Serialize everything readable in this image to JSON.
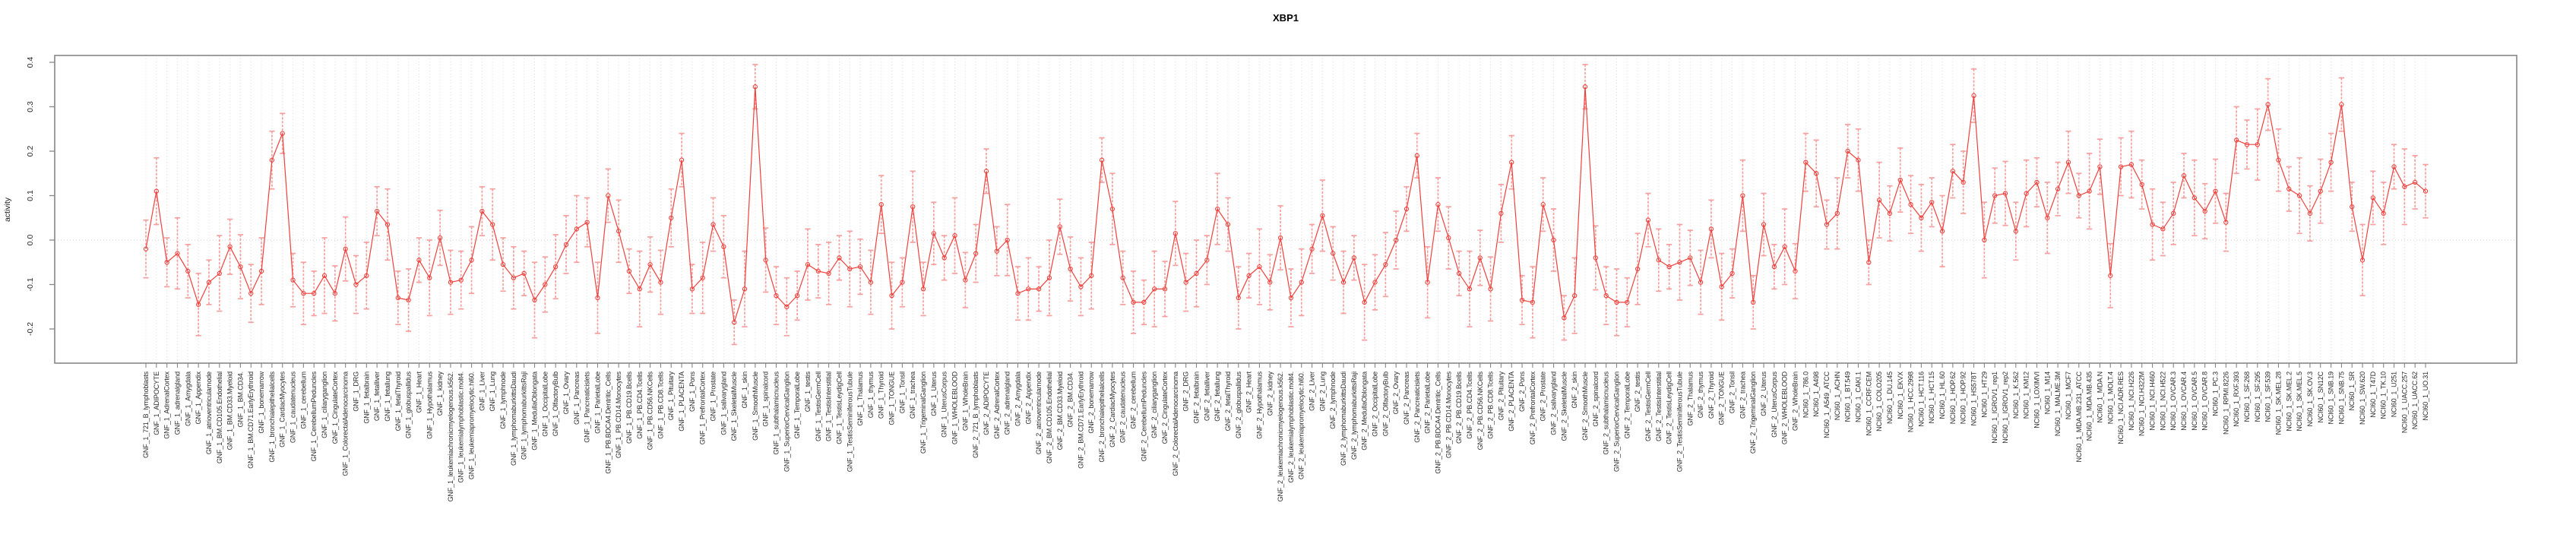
{
  "page": {
    "background": "#ffffff"
  },
  "chart_data": {
    "type": "line",
    "title": "XBP1",
    "xlabel": "",
    "ylabel": "activity",
    "legend": "none",
    "grid": "vertical dotted line per category; horizontal dotted line at y=0",
    "x_tick_label_rotation": 90,
    "point_style": "open-circle with error bars",
    "ylim": [
      -0.28,
      0.42
    ],
    "ytick_values": [
      -0.2,
      -0.1,
      0.0,
      0.1,
      0.2,
      0.3,
      0.4
    ],
    "ytick_labels": [
      "-0.2",
      "-0.1",
      "0.0",
      "0.1",
      "0.2",
      "0.3",
      "0.4"
    ],
    "n_points": 218,
    "colors": {
      "series": "#ee413d",
      "error_bar": "#f59f9e",
      "grid": "#dcdcdc",
      "zero_line": "#c9c9c9",
      "box": "#878787",
      "tick_text": "#2b2b2b"
    },
    "categories": [
      "GNF_1_721_B_lymphoblasts",
      "GNF_1_ADIPOCYTE",
      "GNF_1_AdrenalCortex",
      "GNF_1_adrenalgland",
      "GNF_1_Amygdala",
      "GNF_1_Appendix",
      "GNF_1_atrioventricularnode",
      "GNF_1_BM.CD105.Endothelial",
      "GNF_1_BM.CD33.Myeloid",
      "GNF_1_BM.CD34.",
      "GNF_1_BM.CD71.EarlyErythroid",
      "GNF_1_bonemarrow",
      "GNF_1_bronchialepithelialcells",
      "GNF_1_CardiacMyocytes",
      "GNF_1_caudatenucleus",
      "GNF_1_cerebellum",
      "GNF_1_CerebellumPeduncles",
      "GNF_1_ciliaryganglion",
      "GNF_1_CingulateCortex",
      "GNF_1_ColorectalAdenocarcinoma",
      "GNF_1_DRG",
      "GNF_1_fetalbrain",
      "GNF_1_fetalliver",
      "GNF_1_fetallung",
      "GNF_1_fetalThyroid",
      "GNF_1_globuspallidus",
      "GNF_1_Heart",
      "GNF_1_Hypothalamus",
      "GNF_1_kidney",
      "GNF_1_leukemiachronicmyelogenous.k562.",
      "GNF_1_leukemialymphoblastic.molt4.",
      "GNF_1_leukemiapromyelocytic.hl60.",
      "GNF_1_Liver",
      "GNF_1_Lung",
      "GNF_1_lymphnode",
      "GNF_1_lymphomaburkittsDaudi",
      "GNF_1_lymphomaburkittsRaji",
      "GNF_1_MedullaOblongata",
      "GNF_1_OccipitalLobe",
      "GNF_1_OlfactoryBulb",
      "GNF_1_Ovary",
      "GNF_1_Pancreas",
      "GNF_1_Pancreaticislets",
      "GNF_1_ParietalLobe",
      "GNF_1_PB.BDCA4.Dentritic_Cells",
      "GNF_1_PB.CD14.Monocytes",
      "GNF_1_PB.CD19.Bcells",
      "GNF_1_PB.CD4.Tcells",
      "GNF_1_PB.CD56.NKCells",
      "GNF_1_PB.CD8.Tcells",
      "GNF_1_Pituitary",
      "GNF_1_PLACENTA",
      "GNF_1_Pons",
      "GNF_1_PrefrontalCortex",
      "GNF_1_Prostate",
      "GNF_1_salivarygland",
      "GNF_1_SkeletalMuscle",
      "GNF_1_skin",
      "GNF_1_SmoothMuscle",
      "GNF_1_spinalcord",
      "GNF_1_subthalamicnucleus",
      "GNF_1_SuperiorCervicalGanglion",
      "GNF_1_TemporalLobe",
      "GNF_1_testis",
      "GNF_1_TestisGermCell",
      "GNF_1_TestisInterstitial",
      "GNF_1_TestisLeydigCell",
      "GNF_1_TestisSeminiferousTubule",
      "GNF_1_Thalamus",
      "GNF_1_thymus",
      "GNF_1_Thyroid",
      "GNF_1_TONGUE",
      "GNF_1_Tonsil",
      "GNF_1_trachea",
      "GNF_1_TrigeminalGanglion",
      "GNF_1_Uterus",
      "GNF_1_UterusCorpus",
      "GNF_1_WHOLEBLOOD",
      "GNF_1_WholeBrain",
      "GNF_2_721_B_lymphoblasts",
      "GNF_2_ADIPOCYTE",
      "GNF_2_AdrenalCortex",
      "GNF_2_adrenalgland",
      "GNF_2_Amygdala",
      "GNF_2_Appendix",
      "GNF_2_atrioventricularnode",
      "GNF_2_BM.CD105.Endothelial",
      "GNF_2_BM.CD33.Myeloid",
      "GNF_2_BM.CD34.",
      "GNF_2_BM.CD71.EarlyErythroid",
      "GNF_2_bonemarrow",
      "GNF_2_bronchialepithelialcells",
      "GNF_2_CardiacMyocytes",
      "GNF_2_caudatenucleus",
      "GNF_2_cerebellum",
      "GNF_2_CerebellumPeduncles",
      "GNF_2_ciliaryganglion",
      "GNF_2_CingulateCortex",
      "GNF_2_ColorectalAdenocarcinoma",
      "GNF_2_DRG",
      "GNF_2_fetalbrain",
      "GNF_2_fetalliver",
      "GNF_2_fetallung",
      "GNF_2_fetalThyroid",
      "GNF_2_globuspallidus",
      "GNF_2_Heart",
      "GNF_2_Hypothalamus",
      "GNF_2_kidney",
      "GNF_2_leukemiachronicmyelogenous.k562.",
      "GNF_2_leukemialymphoblastic.molt4.",
      "GNF_2_leukemiapromyelocytic.hl60.",
      "GNF_2_Liver",
      "GNF_2_Lung",
      "GNF_2_lymphnode",
      "GNF_2_lymphomaburkittsDaudi",
      "GNF_2_lymphomaburkittsRaji",
      "GNF_2_MedullaOblongata",
      "GNF_2_OccipitalLobe",
      "GNF_2_OlfactoryBulb",
      "GNF_2_Ovary",
      "GNF_2_Pancreas",
      "GNF_2_Pancreaticislets",
      "GNF_2_ParietalLobe",
      "GNF_2_PB.BDCA4.Dentritic_Cells",
      "GNF_2_PB.CD14.Monocytes",
      "GNF_2_PB.CD19.Bcells",
      "GNF_2_PB.CD4.Tcells",
      "GNF_2_PB.CD56.NKCells",
      "GNF_2_PB.CD8.Tcells",
      "GNF_2_Pituitary",
      "GNF_2_PLACENTA",
      "GNF_2_Pons",
      "GNF_2_PrefrontalCortex",
      "GNF_2_Prostate",
      "GNF_2_salivarygland",
      "GNF_2_SkeletalMuscle",
      "GNF_2_skin",
      "GNF_2_SmoothMuscle",
      "GNF_2_spinalcord",
      "GNF_2_subthalamicnucleus",
      "GNF_2_SuperiorCervicalGanglion",
      "GNF_2_TemporalLobe",
      "GNF_2_testis",
      "GNF_2_TestisGermCell",
      "GNF_2_TestisInterstitial",
      "GNF_2_TestisLeydigCell",
      "GNF_2_TestisSeminiferousTubule",
      "GNF_2_Thalamus",
      "GNF_2_thymus",
      "GNF_2_Thyroid",
      "GNF_2_TONGUE",
      "GNF_2_Tonsil",
      "GNF_2_trachea",
      "GNF_2_TrigeminalGanglion",
      "GNF_2_Uterus",
      "GNF_2_UterusCorpus",
      "GNF_2_WHOLEBLOOD",
      "GNF_2_WholeBrain",
      "NCI60_1_786.0",
      "NCI60_1_A498",
      "NCI60_1_A549_ATCC",
      "NCI60_1_ACHN",
      "NCI60_1_BT.549",
      "NCI60_1_CAKI.1",
      "NCI60_1_CCRF.CEM",
      "NCI60_1_COLO205",
      "NCI60_1_DU.145",
      "NCI60_1_EKVX",
      "NCI60_1_HCC.2998",
      "NCI60_1_HCT.116",
      "NCI60_1_HCT.15",
      "NCI60_1_HL.60",
      "NCI60_1_HOP.62",
      "NCI60_1_HOP.92",
      "NCI60_1_HS578T",
      "NCI60_1_HT29",
      "NCI60_1_IGROV1_rep1",
      "NCI60_1_IGROV1_rep2",
      "NCI60_1_K.562",
      "NCI60_1_KM12",
      "NCI60_1_LOXIMVI",
      "NCI60_1_M14",
      "NCI60_1_MALME.3M",
      "NCI60_1_MCF7",
      "NCI60_1_MDA.MB.231_ATCC",
      "NCI60_1_MDA.MB.435",
      "NCI60_1_MDA.N",
      "NCI60_1_MOLT.4",
      "NCI60_1_NCI.ADR.RES",
      "NCI60_1_NCI.H226",
      "NCI60_1_NCI.H322M",
      "NCI60_1_NCI.H460",
      "NCI60_1_NCI.H522",
      "NCI60_1_OVCAR.3",
      "NCI60_1_OVCAR.4",
      "NCI60_1_OVCAR.5",
      "NCI60_1_OVCAR.8",
      "NCI60_1_PC.3",
      "NCI60_1_RPMI.8226",
      "NCI60_1_RXF.393",
      "NCI60_1_SF.268",
      "NCI60_1_SF.295",
      "NCI60_1_SF.539",
      "NCI60_1_SK.MEL.28",
      "NCI60_1_SK.MEL.2",
      "NCI60_1_SK.MEL.5",
      "NCI60_1_SK.OV.3",
      "NCI60_1_SN12C",
      "NCI60_1_SNB.19",
      "NCI60_1_SNB.75",
      "NCI60_1_SR",
      "NCI60_1_SW.620",
      "NCI60_1_T47D",
      "NCI60_1_TK.10",
      "NCI60_1_U251",
      "NCI60_1_UACC.257",
      "NCI60_1_UACC.62",
      "NCI60_1_UO.31"
    ],
    "values": [
      -0.02,
      0.11,
      -0.05,
      -0.03,
      -0.07,
      -0.145,
      -0.095,
      -0.075,
      -0.015,
      -0.06,
      -0.12,
      -0.07,
      0.18,
      0.24,
      -0.09,
      -0.12,
      -0.12,
      -0.08,
      -0.12,
      -0.02,
      -0.1,
      -0.08,
      0.065,
      0.035,
      -0.13,
      -0.135,
      -0.045,
      -0.085,
      0.005,
      -0.095,
      -0.09,
      -0.045,
      0.065,
      0.035,
      -0.055,
      -0.085,
      -0.075,
      -0.135,
      -0.1,
      -0.06,
      -0.01,
      0.025,
      0.04,
      -0.13,
      0.1,
      0.02,
      -0.07,
      -0.11,
      -0.055,
      -0.095,
      0.05,
      0.18,
      -0.11,
      -0.085,
      0.035,
      -0.015,
      -0.185,
      -0.11,
      0.345,
      -0.045,
      -0.125,
      -0.15,
      -0.125,
      -0.055,
      -0.07,
      -0.075,
      -0.04,
      -0.065,
      -0.06,
      -0.095,
      0.08,
      -0.125,
      -0.095,
      0.075,
      -0.11,
      0.015,
      -0.04,
      0.01,
      -0.09,
      -0.03,
      0.155,
      -0.025,
      0.0,
      -0.12,
      -0.11,
      -0.11,
      -0.085,
      0.03,
      -0.065,
      -0.105,
      -0.08,
      0.18,
      0.07,
      -0.085,
      -0.14,
      -0.14,
      -0.11,
      -0.11,
      0.015,
      -0.095,
      -0.075,
      -0.045,
      0.07,
      0.035,
      -0.13,
      -0.08,
      -0.06,
      -0.095,
      0.005,
      -0.13,
      -0.095,
      -0.02,
      0.055,
      -0.03,
      -0.095,
      -0.04,
      -0.14,
      -0.095,
      -0.055,
      0.0,
      0.07,
      0.19,
      -0.095,
      0.08,
      0.005,
      -0.075,
      -0.11,
      -0.04,
      -0.11,
      0.06,
      0.175,
      -0.135,
      -0.14,
      0.08,
      0.0,
      -0.175,
      -0.125,
      0.345,
      -0.04,
      -0.125,
      -0.14,
      -0.14,
      -0.065,
      0.045,
      -0.045,
      -0.06,
      -0.05,
      -0.04,
      -0.095,
      0.025,
      -0.105,
      -0.075,
      0.1,
      -0.14,
      0.035,
      -0.06,
      -0.015,
      -0.07,
      0.175,
      0.15,
      0.035,
      0.06,
      0.2,
      0.18,
      -0.05,
      0.09,
      0.06,
      0.135,
      0.08,
      0.05,
      0.085,
      0.02,
      0.155,
      0.13,
      0.325,
      0.0,
      0.1,
      0.105,
      0.02,
      0.105,
      0.13,
      0.05,
      0.115,
      0.175,
      0.1,
      0.11,
      0.165,
      -0.08,
      0.165,
      0.17,
      0.125,
      0.035,
      0.025,
      0.06,
      0.145,
      0.095,
      0.065,
      0.11,
      0.04,
      0.225,
      0.215,
      0.215,
      0.305,
      0.18,
      0.115,
      0.1,
      0.06,
      0.11,
      0.175,
      0.305,
      0.075,
      -0.045,
      0.095,
      0.06,
      0.165,
      0.12,
      0.13,
      0.11
    ],
    "error_half_lengths": [
      0.065,
      0.075,
      0.055,
      0.08,
      0.06,
      0.07,
      0.05,
      0.085,
      0.062,
      0.072,
      0.065,
      0.075,
      0.065,
      0.045,
      0.06,
      0.07,
      0.05,
      0.085,
      0.062,
      0.072,
      0.065,
      0.075,
      0.055,
      0.08,
      0.06,
      0.07,
      0.05,
      0.085,
      0.062,
      0.072,
      0.065,
      0.075,
      0.055,
      0.08,
      0.06,
      0.07,
      0.05,
      0.085,
      0.062,
      0.072,
      0.065,
      0.075,
      0.055,
      0.08,
      0.06,
      0.07,
      0.05,
      0.085,
      0.062,
      0.072,
      0.065,
      0.06,
      0.055,
      0.08,
      0.06,
      0.07,
      0.05,
      0.085,
      0.05,
      0.072,
      0.065,
      0.065,
      0.055,
      0.08,
      0.06,
      0.07,
      0.05,
      0.085,
      0.062,
      0.072,
      0.065,
      0.075,
      0.055,
      0.08,
      0.06,
      0.07,
      0.05,
      0.085,
      0.062,
      0.065,
      0.05,
      0.055,
      0.08,
      0.06,
      0.07,
      0.05,
      0.085,
      0.062,
      0.072,
      0.065,
      0.075,
      0.05,
      0.08,
      0.06,
      0.07,
      0.05,
      0.085,
      0.062,
      0.072,
      0.065,
      0.075,
      0.055,
      0.08,
      0.06,
      0.07,
      0.05,
      0.085,
      0.062,
      0.072,
      0.065,
      0.075,
      0.055,
      0.08,
      0.06,
      0.07,
      0.05,
      0.085,
      0.062,
      0.072,
      0.065,
      0.05,
      0.05,
      0.08,
      0.06,
      0.07,
      0.05,
      0.085,
      0.062,
      0.072,
      0.065,
      0.06,
      0.055,
      0.08,
      0.06,
      0.07,
      0.05,
      0.085,
      0.05,
      0.072,
      0.065,
      0.075,
      0.055,
      0.08,
      0.06,
      0.07,
      0.05,
      0.085,
      0.062,
      0.072,
      0.065,
      0.075,
      0.055,
      0.08,
      0.06,
      0.07,
      0.05,
      0.085,
      0.062,
      0.065,
      0.075,
      0.055,
      0.08,
      0.06,
      0.07,
      0.05,
      0.085,
      0.062,
      0.072,
      0.065,
      0.075,
      0.055,
      0.08,
      0.06,
      0.07,
      0.06,
      0.085,
      0.062,
      0.072,
      0.065,
      0.075,
      0.055,
      0.08,
      0.06,
      0.07,
      0.05,
      0.085,
      0.062,
      0.072,
      0.065,
      0.075,
      0.055,
      0.08,
      0.06,
      0.07,
      0.05,
      0.085,
      0.062,
      0.072,
      0.065,
      0.075,
      0.055,
      0.08,
      0.058,
      0.07,
      0.05,
      0.085,
      0.062,
      0.072,
      0.065,
      0.06,
      0.055,
      0.08,
      0.06,
      0.07,
      0.05,
      0.085
    ]
  }
}
